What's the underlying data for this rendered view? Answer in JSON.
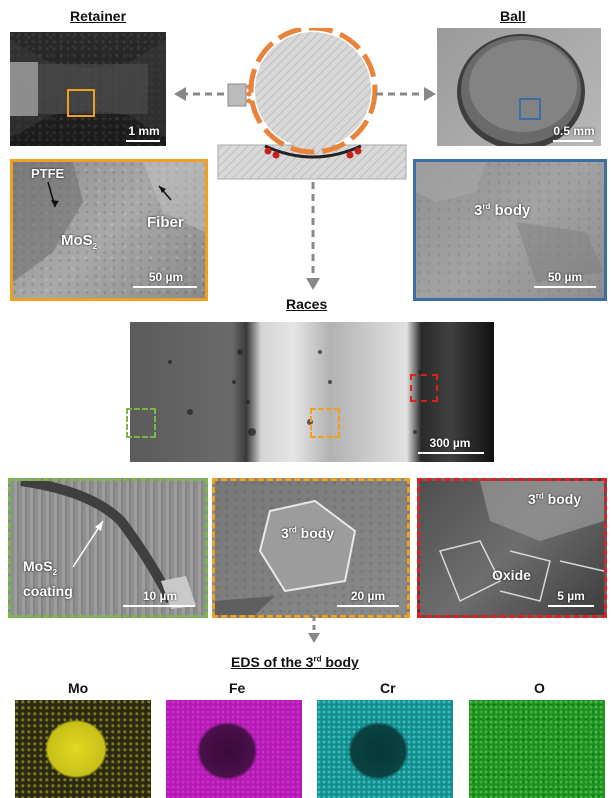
{
  "titles": {
    "retainer": "Retainer",
    "ball": "Ball",
    "races": "Races",
    "eds_prefix": "EDS of the 3",
    "eds_sup": "rd",
    "eds_suffix": " body"
  },
  "retainer": {
    "scale_bar": "1 mm",
    "zoom": {
      "ptfe_label": "PTFE",
      "mos2_label": "MoS",
      "mos2_sub": "2",
      "fiber_label": "Fiber",
      "scale_bar": "50 µm"
    }
  },
  "ball": {
    "scale_bar": "0.5 mm",
    "zoom": {
      "label_prefix": "3",
      "label_sup": "rd",
      "label_suffix": " body",
      "scale_bar": "50 µm"
    }
  },
  "races": {
    "scale_bar": "300 µm",
    "green_zoom": {
      "label_line1": "MoS",
      "label_sub": "2",
      "label_line2": "coating",
      "scale_bar": "10 µm"
    },
    "yellow_zoom": {
      "label_prefix": "3",
      "label_sup": "rd",
      "label_suffix": " body",
      "scale_bar": "20 µm"
    },
    "red_zoom": {
      "label_prefix": "3",
      "label_sup": "rd",
      "label_suffix": " body",
      "oxide_label": "Oxide",
      "scale_bar": "5 µm"
    }
  },
  "eds": {
    "maps": [
      {
        "element": "Mo",
        "color": "#e8e020"
      },
      {
        "element": "Fe",
        "color": "#c020c0"
      },
      {
        "element": "Cr",
        "color": "#20c8c8"
      },
      {
        "element": "O",
        "color": "#20a020"
      }
    ]
  },
  "colors": {
    "orange": "#f0a020",
    "blue": "#3a6ea5",
    "green": "#7ab648",
    "red": "#e02020",
    "ring": "#e8833a",
    "arrow": "#888888"
  }
}
